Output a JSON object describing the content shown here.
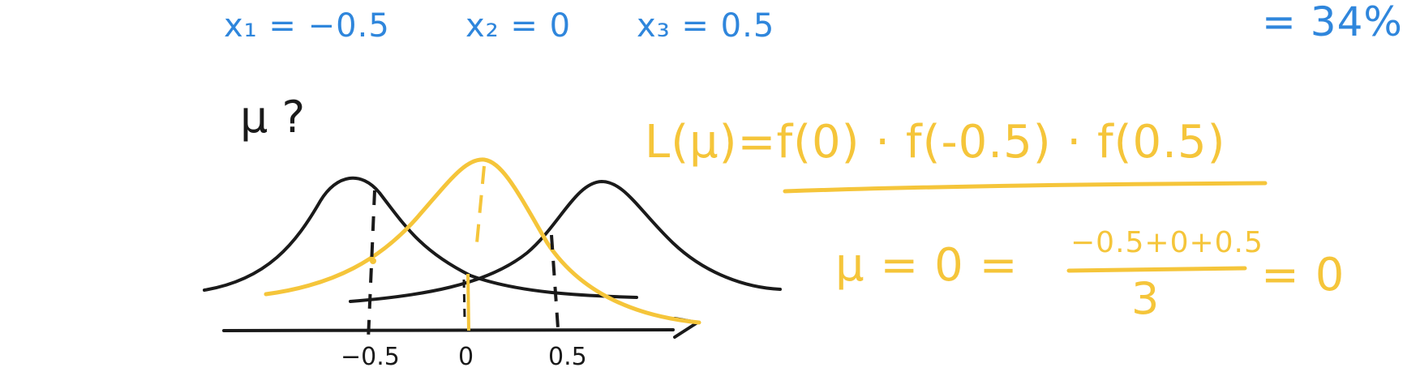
{
  "observations": {
    "x1": "x₁ = −0.5",
    "x2": "x₂ = 0",
    "x3": "x₃ = 0.5"
  },
  "percent_fragment": "= 34%",
  "question": "μ ?",
  "likelihood": "L(μ)=f(0) · f(-0.5) · f(0.5)",
  "mu_equation": {
    "left": "μ = 0 =",
    "numerator": "−0.5+0+0.5",
    "denominator": "3",
    "right": "= 0"
  },
  "axis_ticks": {
    "neg": "−0.5",
    "zero": "0",
    "pos": "0.5"
  },
  "colors": {
    "blue": "#2f86dc",
    "gold": "#f5c53a",
    "ink": "#1a1a1a"
  }
}
